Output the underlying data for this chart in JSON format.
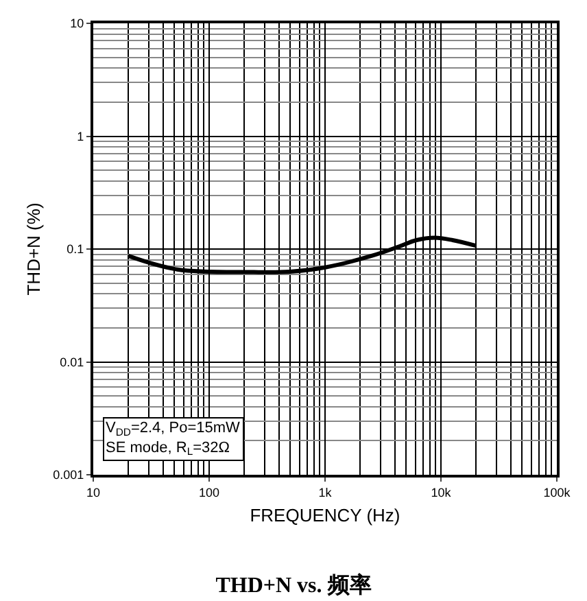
{
  "chart_data": {
    "type": "line",
    "title": "THD+N vs. 频率",
    "xlabel": "FREQUENCY (Hz)",
    "ylabel": "THD+N (%)",
    "x": [
      20,
      53,
      244,
      497,
      1020,
      2520,
      4320,
      6150,
      8850,
      12600,
      20000
    ],
    "series": [
      {
        "color": "#000000",
        "values": [
          0.087,
          0.066,
          0.0625,
          0.063,
          0.069,
          0.087,
          0.105,
          0.12,
          0.126,
          0.12,
          0.107
        ]
      }
    ],
    "log": "xy",
    "xlim": [
      10,
      100000
    ],
    "ylim": [
      0.001,
      10
    ],
    "xticks": [
      {
        "value": 10,
        "label": "10"
      },
      {
        "value": 100,
        "label": "100"
      },
      {
        "value": 1000,
        "label": "1k"
      },
      {
        "value": 10000,
        "label": "10k"
      },
      {
        "value": 100000,
        "label": "100k"
      }
    ],
    "yticks": [
      0.001,
      0.01,
      0.1,
      1,
      10
    ],
    "grid": true,
    "marker": "none",
    "line_style": "solid",
    "annotations": [
      "V$_{DD}$=2.4, Po=15mW\nSE mode, R$_{L}$=32Ω"
    ]
  }
}
